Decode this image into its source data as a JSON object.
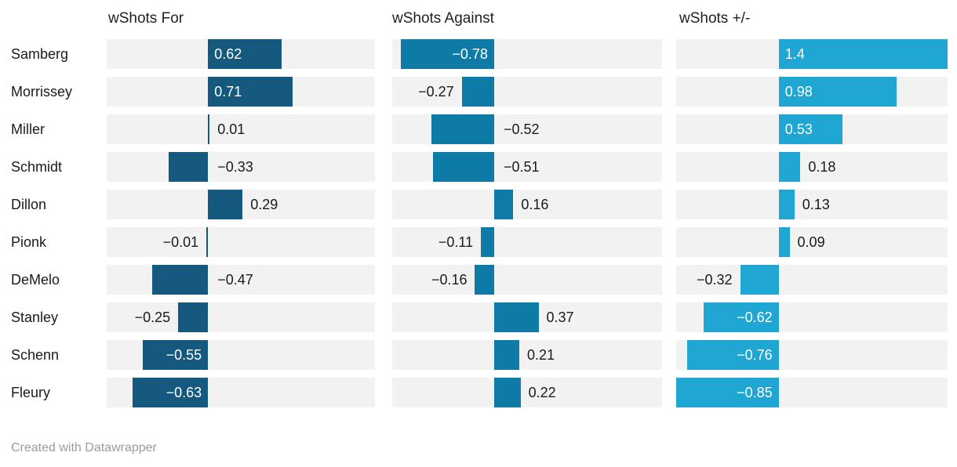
{
  "chart_data": {
    "type": "bar",
    "orientation": "horizontal",
    "layout": "split-columns",
    "categories": [
      "Samberg",
      "Morrissey",
      "Miller",
      "Schmidt",
      "Dillon",
      "Pionk",
      "DeMelo",
      "Stanley",
      "Schenn",
      "Fleury"
    ],
    "series": [
      {
        "name": "wShots For",
        "color": "#155a7e",
        "values": [
          0.62,
          0.71,
          0.01,
          -0.33,
          0.29,
          -0.01,
          -0.47,
          -0.25,
          -0.55,
          -0.63
        ],
        "labels": [
          "0.62",
          "0.71",
          "0.01",
          "−0.33",
          "0.29",
          "−0.01",
          "−0.47",
          "−0.25",
          "−0.55",
          "−0.63"
        ],
        "label_placements": [
          "inside",
          "inside",
          "out-end",
          "out-zero",
          "out-end",
          "out-end",
          "out-zero",
          "out-end",
          "inside",
          "inside"
        ]
      },
      {
        "name": "wShots Against",
        "color": "#0d7ba6",
        "values": [
          -0.78,
          -0.27,
          -0.52,
          -0.51,
          0.16,
          -0.11,
          -0.16,
          0.37,
          0.21,
          0.22
        ],
        "labels": [
          "−0.78",
          "−0.27",
          "−0.52",
          "−0.51",
          "0.16",
          "−0.11",
          "−0.16",
          "0.37",
          "0.21",
          "0.22"
        ],
        "label_placements": [
          "inside",
          "out-end",
          "out-zero",
          "out-zero",
          "out-end",
          "out-end",
          "out-end",
          "out-end",
          "out-end",
          "out-end"
        ]
      },
      {
        "name": "wShots +/-",
        "color": "#1fa6d3",
        "values": [
          1.4,
          0.98,
          0.53,
          0.18,
          0.13,
          0.09,
          -0.32,
          -0.62,
          -0.76,
          -0.85
        ],
        "labels": [
          "1.4",
          "0.98",
          "0.53",
          "0.18",
          "0.13",
          "0.09",
          "−0.32",
          "−0.62",
          "−0.76",
          "−0.85"
        ],
        "label_placements": [
          "inside",
          "inside",
          "inside",
          "out-end",
          "out-end",
          "out-end",
          "out-end",
          "inside",
          "inside",
          "inside"
        ]
      }
    ],
    "xlim": [
      -0.85,
      1.4
    ],
    "grid": "off",
    "legend": "none",
    "zero_baseline_fraction": 0.3778,
    "row_background": "#f2f2f2",
    "inside_label_color": "#ffffff",
    "outside_label_color": "#1a1a1a"
  },
  "footer": {
    "credit": "Created with Datawrapper"
  }
}
